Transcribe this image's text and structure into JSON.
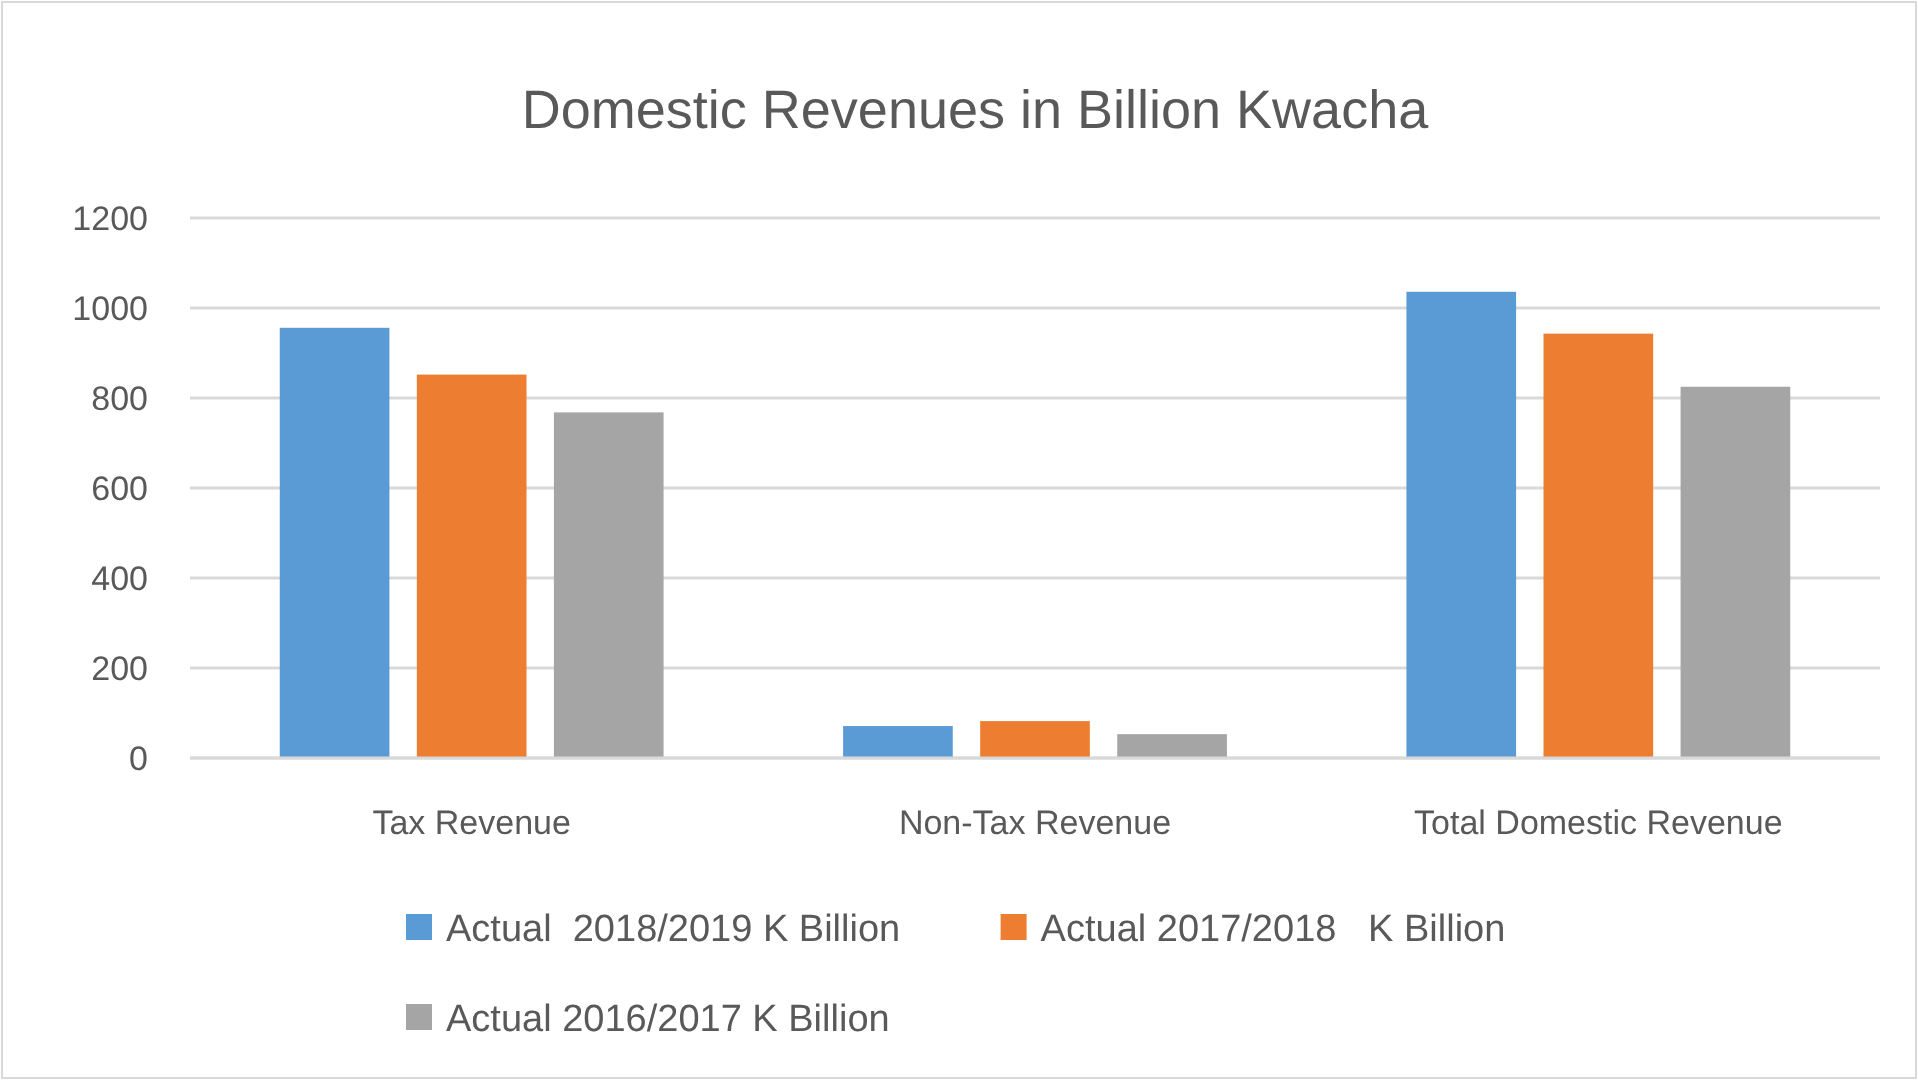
{
  "chart_data": {
    "type": "bar",
    "title": "Domestic Revenues in Billion Kwacha",
    "categories": [
      "Tax Revenue",
      "Non-Tax Revenue",
      "Total Domestic Revenue"
    ],
    "series": [
      {
        "name": "Actual  2018/2019 K Billion",
        "color": "#5b9bd5",
        "values": [
          956,
          71,
          1036
        ]
      },
      {
        "name": "Actual 2017/2018   K Billion",
        "color": "#ed7d31",
        "values": [
          852,
          82,
          943
        ]
      },
      {
        "name": "Actual 2016/2017 K Billion",
        "color": "#a5a5a5",
        "values": [
          768,
          53,
          825
        ]
      }
    ],
    "ylim": [
      0,
      1200
    ],
    "yticks": [
      0,
      200,
      400,
      600,
      800,
      1000,
      1200
    ],
    "grid": "y",
    "legend": "bottom"
  }
}
